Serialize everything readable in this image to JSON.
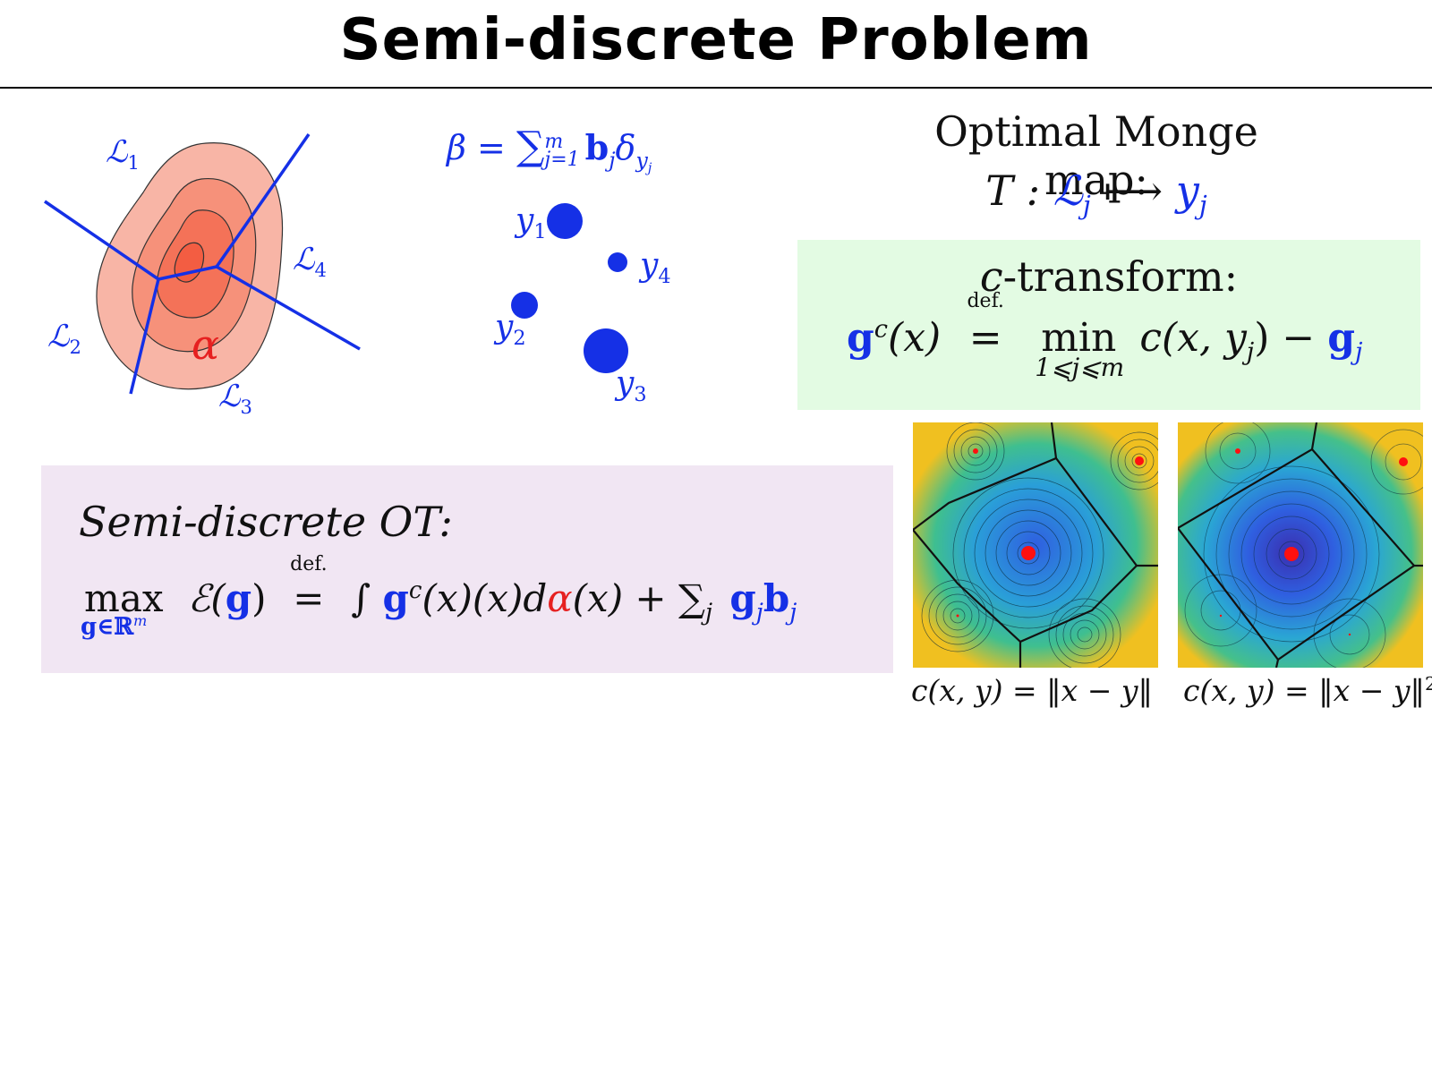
{
  "title": "Semi-discrete Problem",
  "cells": {
    "L1": {
      "main": "ℒ",
      "sub": "1"
    },
    "L2": {
      "main": "ℒ",
      "sub": "2"
    },
    "L3": {
      "main": "ℒ",
      "sub": "3"
    },
    "L4": {
      "main": "ℒ",
      "sub": "4"
    },
    "alpha": "α"
  },
  "beta_formula": {
    "lhs": "β = ",
    "sum": "∑",
    "sum_sub": "j=1",
    "sum_sup": "m",
    "b": "b",
    "b_sub": "j",
    "delta": "δ",
    "delta_sub": "y",
    "delta_subsub": "j"
  },
  "points": {
    "y1": {
      "main": "y",
      "sub": "1"
    },
    "y2": {
      "main": "y",
      "sub": "2"
    },
    "y3": {
      "main": "y",
      "sub": "3"
    },
    "y4": {
      "main": "y",
      "sub": "4"
    }
  },
  "monge": {
    "heading": "Optimal Monge map:",
    "T": "T : ",
    "L": "ℒ",
    "L_sub": "j",
    "arrow": " ⟼ ",
    "y": "y",
    "y_sub": "j"
  },
  "c_transform": {
    "heading_c": "c",
    "heading_rest": "-transform:",
    "g": "g",
    "g_sup": "c",
    "arg": "(x)",
    "def": "def.",
    "eq": "=",
    "min": "min",
    "min_sub": "1⩽j⩽m",
    "rhs": "c(x, y",
    "rhs_sub": "j",
    "rhs_end": ") − ",
    "gj": "g",
    "gj_sub": "j"
  },
  "semi_ot": {
    "heading": "Semi-discrete OT:",
    "max": "max",
    "max_sub": "g∈ℝ",
    "max_sub_sup": "m",
    "E": "ℰ(",
    "E_g": "g",
    "E_end": ")",
    "def": "def.",
    "eq": "=",
    "integral": "∫ ",
    "g": "g",
    "g_sup": "c",
    "mid": "(x)(x)d",
    "alpha": "α",
    "after_alpha": "(x) + ",
    "sum": "∑",
    "sum_sub": "j",
    "gj": "g",
    "gj_sub": "j",
    "bj": "b",
    "bj_sub": "j"
  },
  "captions": {
    "left": "c(x, y) = ‖x − y‖",
    "right": "c(x, y) = ‖x − y‖",
    "right_sup": "2"
  },
  "colors": {
    "blue": "#1530e6",
    "red": "#e62020",
    "green_bg": "#e3fbe3",
    "purple_bg": "#f1e6f3"
  }
}
